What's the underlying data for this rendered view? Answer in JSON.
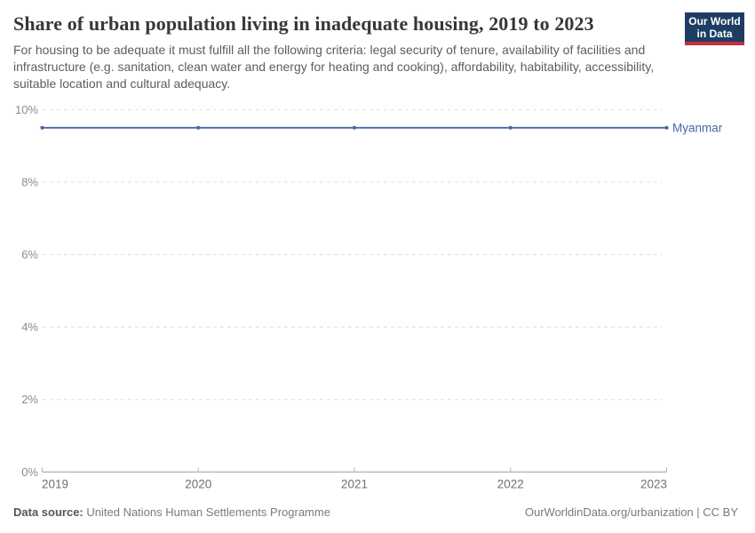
{
  "header": {
    "title": "Share of urban population living in inadequate housing, 2019 to 2023",
    "subtitle": "For housing to be adequate it must fulfill all the following criteria: legal security of tenure, availability of facilities and infrastructure (e.g. sanitation, clean water and energy for heating and cooking), affordability, habitability, accessibility, suitable location and cultural adequacy.",
    "logo": {
      "line1": "Our World",
      "line2": "in Data",
      "bg_color": "#1d3d63",
      "accent_color": "#c5303e"
    }
  },
  "chart_data": {
    "type": "line",
    "x": [
      2019,
      2020,
      2021,
      2022,
      2023
    ],
    "series": [
      {
        "name": "Myanmar",
        "values": [
          9.5,
          9.5,
          9.5,
          9.5,
          9.5
        ],
        "color": "#4a67a3"
      }
    ],
    "title": "Share of urban population living in inadequate housing, 2019 to 2023",
    "xlabel": "",
    "ylabel": "",
    "ylim": [
      0,
      10
    ],
    "yticks": [
      0,
      2,
      4,
      6,
      8,
      10
    ],
    "ytick_suffix": "%",
    "grid": "horizontal-dashed",
    "legend_position": "right-of-line-end",
    "marker": "dot"
  },
  "style_colors": {
    "gridline": "#dedede",
    "axis_line": "#9c9c9c",
    "axis_tick": "#b3b3b3",
    "ytick_label": "#8b8b8b",
    "xtick_label": "#6f6f6f"
  },
  "footer": {
    "source_label": "Data source:",
    "source_value": "United Nations Human Settlements Programme",
    "attribution": "OurWorldinData.org/urbanization | CC BY"
  }
}
